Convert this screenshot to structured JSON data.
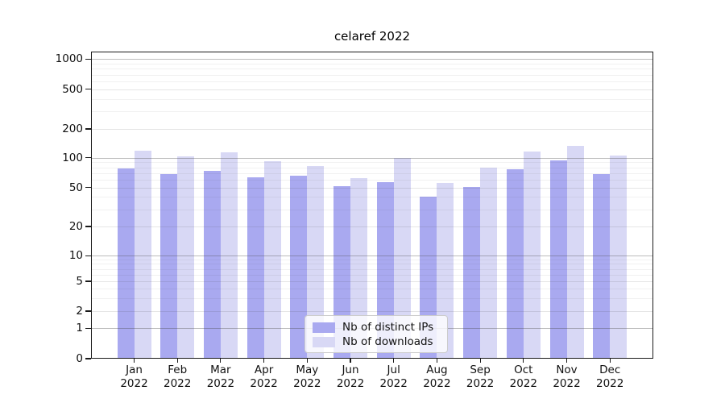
{
  "chart_data": {
    "type": "bar",
    "title": "celaref 2022",
    "categories": [
      "Jan 2022",
      "Feb 2022",
      "Mar 2022",
      "Apr 2022",
      "May 2022",
      "Jun 2022",
      "Jul 2022",
      "Aug 2022",
      "Sep 2022",
      "Oct 2022",
      "Nov 2022",
      "Dec 2022"
    ],
    "series": [
      {
        "name": "Nb of distinct IPs",
        "color": "#a9a9f0",
        "values": [
          78,
          68,
          74,
          64,
          66,
          52,
          57,
          40,
          51,
          76,
          94,
          68
        ]
      },
      {
        "name": "Nb of downloads",
        "color": "#d8d8f5",
        "values": [
          119,
          103,
          113,
          92,
          83,
          62,
          100,
          56,
          79,
          116,
          133,
          106
        ]
      }
    ],
    "xlabel": "",
    "ylabel": "",
    "yscale": "symlog",
    "yticks": [
      0,
      1,
      2,
      5,
      10,
      20,
      50,
      100,
      200,
      500,
      1000
    ],
    "ylim": [
      0,
      1200
    ],
    "grid": "both-horizontal",
    "grid_above_bars": true,
    "legend_position": "lower center"
  },
  "legend": {
    "item_ips": "Nb of distinct IPs",
    "item_downloads": "Nb of downloads"
  },
  "colors": {
    "ips_bar": "#a9a9f0",
    "downloads_bar": "#d8d8f5",
    "background": "#ffffff",
    "grid_major": "#a6a6a6",
    "grid_minor": "#e8e8e8"
  }
}
